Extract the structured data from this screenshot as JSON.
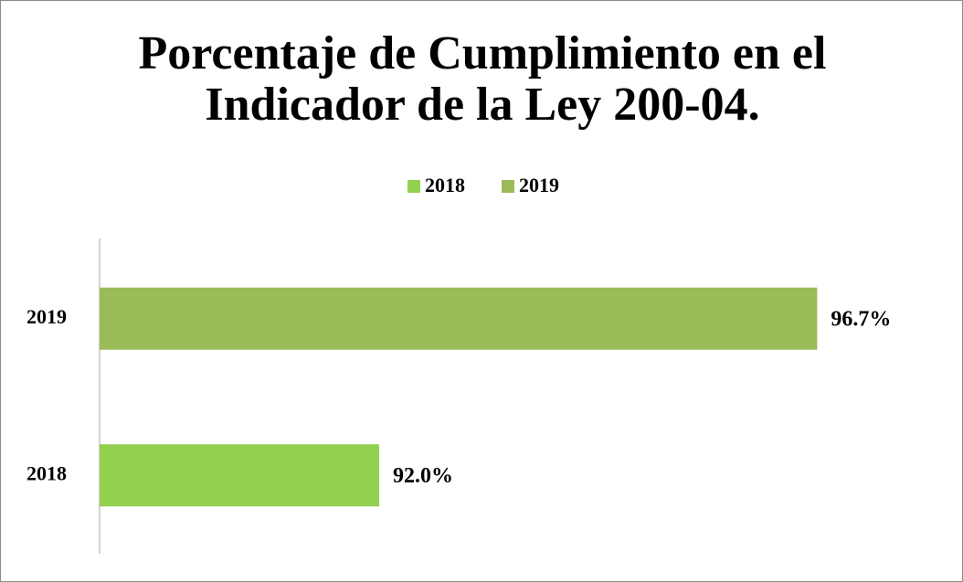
{
  "chart_data": {
    "type": "barh",
    "title": "Porcentaje de Cumplimiento en el Indicador de la Ley 200-04.",
    "categories": [
      "2018",
      "2019"
    ],
    "series": [
      {
        "name": "2018",
        "color": "#92d050",
        "values": [
          92.0,
          null
        ],
        "value_labels": [
          "92.0%",
          null
        ]
      },
      {
        "name": "2019",
        "color": "#9bbb59",
        "values": [
          null,
          96.7
        ],
        "value_labels": [
          null,
          "96.7%"
        ]
      }
    ],
    "xlim": [
      89,
      97
    ],
    "legend": "top"
  }
}
